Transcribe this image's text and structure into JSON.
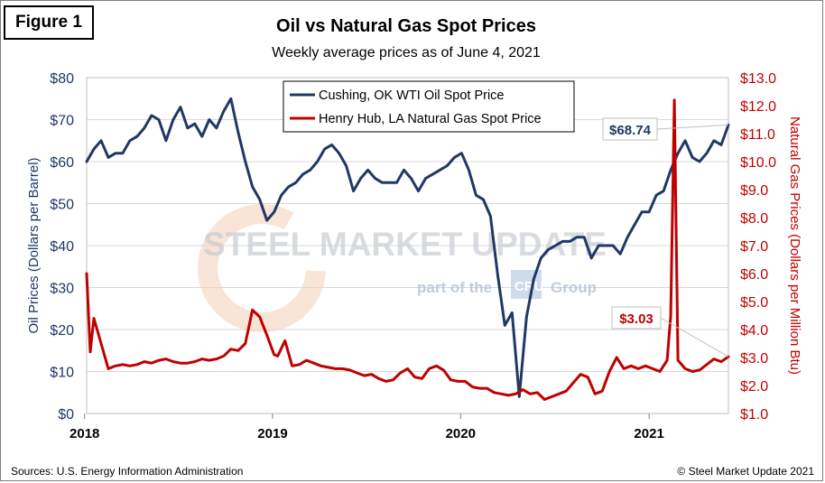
{
  "figure_label": "Figure 1",
  "sources": "Sources: U.S. Energy Information Administration",
  "copyright": "© Steel Market Update 2021",
  "watermark": {
    "main": "STEEL MARKET UPDATE",
    "sub_prefix": "part of the",
    "sub_mark": "CRU",
    "sub_suffix": "Group"
  },
  "colors": {
    "oil": "#1f3864",
    "gas": "#c00000"
  },
  "chart_data": {
    "type": "line",
    "title": "Oil vs Natural Gas Spot Prices",
    "subtitle": "Weekly average prices as of June 4, 2021",
    "x_ticks": [
      "2018",
      "2019",
      "2020",
      "2021"
    ],
    "x_range": [
      "2018-01-05",
      "2021-06-04"
    ],
    "y_left": {
      "label": "Oil Prices (Dollars per Barrel)",
      "range": [
        0,
        80
      ],
      "ticks": [
        "$0",
        "$10",
        "$20",
        "$30",
        "$40",
        "$50",
        "$60",
        "$70",
        "$80"
      ]
    },
    "y_right": {
      "label": "Natural Gas Prices (Dollars per Million Btu)",
      "range": [
        1.0,
        13.0
      ],
      "ticks": [
        "$1.0",
        "$2.0",
        "$3.0",
        "$4.0",
        "$5.0",
        "$6.0",
        "$7.0",
        "$8.0",
        "$9.0",
        "$10.0",
        "$11.0",
        "$12.0",
        "$13.0"
      ]
    },
    "grid": true,
    "legend_position": "top-center",
    "series": [
      {
        "name": "Cushing, OK WTI Oil Spot Price",
        "axis": "left",
        "end_label": "$68.74",
        "points": [
          [
            "2018-01-05",
            60
          ],
          [
            "2018-01-19",
            63
          ],
          [
            "2018-02-02",
            65
          ],
          [
            "2018-02-16",
            61
          ],
          [
            "2018-03-02",
            62
          ],
          [
            "2018-03-16",
            62
          ],
          [
            "2018-03-30",
            65
          ],
          [
            "2018-04-13",
            66
          ],
          [
            "2018-04-27",
            68
          ],
          [
            "2018-05-11",
            71
          ],
          [
            "2018-05-25",
            70
          ],
          [
            "2018-06-08",
            65
          ],
          [
            "2018-06-22",
            70
          ],
          [
            "2018-07-06",
            73
          ],
          [
            "2018-07-20",
            68
          ],
          [
            "2018-08-03",
            69
          ],
          [
            "2018-08-17",
            66
          ],
          [
            "2018-08-31",
            70
          ],
          [
            "2018-09-14",
            68
          ],
          [
            "2018-09-28",
            72
          ],
          [
            "2018-10-12",
            75
          ],
          [
            "2018-10-26",
            67
          ],
          [
            "2018-11-09",
            60
          ],
          [
            "2018-11-23",
            54
          ],
          [
            "2018-12-07",
            51
          ],
          [
            "2018-12-21",
            46
          ],
          [
            "2019-01-04",
            48
          ],
          [
            "2019-01-18",
            52
          ],
          [
            "2019-02-01",
            54
          ],
          [
            "2019-02-15",
            55
          ],
          [
            "2019-03-01",
            57
          ],
          [
            "2019-03-15",
            58
          ],
          [
            "2019-03-29",
            60
          ],
          [
            "2019-04-12",
            63
          ],
          [
            "2019-04-26",
            64
          ],
          [
            "2019-05-10",
            62
          ],
          [
            "2019-05-24",
            59
          ],
          [
            "2019-06-07",
            53
          ],
          [
            "2019-06-21",
            56
          ],
          [
            "2019-07-05",
            58
          ],
          [
            "2019-07-19",
            56
          ],
          [
            "2019-08-02",
            55
          ],
          [
            "2019-08-16",
            55
          ],
          [
            "2019-08-30",
            55
          ],
          [
            "2019-09-13",
            58
          ],
          [
            "2019-09-27",
            56
          ],
          [
            "2019-10-11",
            53
          ],
          [
            "2019-10-25",
            56
          ],
          [
            "2019-11-08",
            57
          ],
          [
            "2019-11-22",
            58
          ],
          [
            "2019-12-06",
            59
          ],
          [
            "2019-12-20",
            61
          ],
          [
            "2020-01-03",
            62
          ],
          [
            "2020-01-17",
            58
          ],
          [
            "2020-01-31",
            52
          ],
          [
            "2020-02-14",
            51
          ],
          [
            "2020-02-28",
            47
          ],
          [
            "2020-03-13",
            33
          ],
          [
            "2020-03-27",
            21
          ],
          [
            "2020-04-10",
            24
          ],
          [
            "2020-04-24",
            4
          ],
          [
            "2020-05-08",
            23
          ],
          [
            "2020-05-22",
            32
          ],
          [
            "2020-06-05",
            37
          ],
          [
            "2020-06-19",
            39
          ],
          [
            "2020-07-03",
            40
          ],
          [
            "2020-07-17",
            41
          ],
          [
            "2020-07-31",
            41
          ],
          [
            "2020-08-14",
            42
          ],
          [
            "2020-08-28",
            42
          ],
          [
            "2020-09-11",
            37
          ],
          [
            "2020-09-25",
            40
          ],
          [
            "2020-10-09",
            40
          ],
          [
            "2020-10-23",
            40
          ],
          [
            "2020-11-06",
            38
          ],
          [
            "2020-11-20",
            42
          ],
          [
            "2020-12-04",
            45
          ],
          [
            "2020-12-18",
            48
          ],
          [
            "2021-01-01",
            48
          ],
          [
            "2021-01-15",
            52
          ],
          [
            "2021-01-29",
            53
          ],
          [
            "2021-02-12",
            58
          ],
          [
            "2021-02-26",
            62
          ],
          [
            "2021-03-12",
            65
          ],
          [
            "2021-03-26",
            61
          ],
          [
            "2021-04-09",
            60
          ],
          [
            "2021-04-23",
            62
          ],
          [
            "2021-05-07",
            65
          ],
          [
            "2021-05-21",
            64
          ],
          [
            "2021-06-04",
            68.74
          ]
        ]
      },
      {
        "name": "Henry Hub, LA Natural Gas Spot Price",
        "axis": "right",
        "end_label": "$3.03",
        "points": [
          [
            "2018-01-05",
            6.0
          ],
          [
            "2018-01-12",
            3.2
          ],
          [
            "2018-01-19",
            4.4
          ],
          [
            "2018-02-02",
            3.5
          ],
          [
            "2018-02-16",
            2.6
          ],
          [
            "2018-03-02",
            2.7
          ],
          [
            "2018-03-16",
            2.75
          ],
          [
            "2018-03-30",
            2.7
          ],
          [
            "2018-04-13",
            2.75
          ],
          [
            "2018-04-27",
            2.85
          ],
          [
            "2018-05-11",
            2.8
          ],
          [
            "2018-05-25",
            2.9
          ],
          [
            "2018-06-08",
            2.95
          ],
          [
            "2018-06-22",
            2.85
          ],
          [
            "2018-07-06",
            2.8
          ],
          [
            "2018-07-20",
            2.8
          ],
          [
            "2018-08-03",
            2.85
          ],
          [
            "2018-08-17",
            2.95
          ],
          [
            "2018-08-31",
            2.9
          ],
          [
            "2018-09-14",
            2.95
          ],
          [
            "2018-09-28",
            3.05
          ],
          [
            "2018-10-12",
            3.3
          ],
          [
            "2018-10-26",
            3.25
          ],
          [
            "2018-11-09",
            3.5
          ],
          [
            "2018-11-23",
            4.7
          ],
          [
            "2018-12-07",
            4.45
          ],
          [
            "2018-12-21",
            3.8
          ],
          [
            "2019-01-04",
            3.1
          ],
          [
            "2019-01-11",
            3.05
          ],
          [
            "2019-01-25",
            3.6
          ],
          [
            "2019-02-08",
            2.7
          ],
          [
            "2019-02-22",
            2.75
          ],
          [
            "2019-03-08",
            2.9
          ],
          [
            "2019-03-22",
            2.8
          ],
          [
            "2019-04-05",
            2.7
          ],
          [
            "2019-04-19",
            2.65
          ],
          [
            "2019-05-03",
            2.6
          ],
          [
            "2019-05-17",
            2.6
          ],
          [
            "2019-05-31",
            2.55
          ],
          [
            "2019-06-14",
            2.45
          ],
          [
            "2019-06-28",
            2.35
          ],
          [
            "2019-07-12",
            2.4
          ],
          [
            "2019-07-26",
            2.25
          ],
          [
            "2019-08-09",
            2.15
          ],
          [
            "2019-08-23",
            2.2
          ],
          [
            "2019-09-06",
            2.45
          ],
          [
            "2019-09-20",
            2.6
          ],
          [
            "2019-10-04",
            2.3
          ],
          [
            "2019-10-18",
            2.25
          ],
          [
            "2019-11-01",
            2.6
          ],
          [
            "2019-11-15",
            2.7
          ],
          [
            "2019-11-29",
            2.55
          ],
          [
            "2019-12-13",
            2.2
          ],
          [
            "2019-12-27",
            2.15
          ],
          [
            "2020-01-10",
            2.15
          ],
          [
            "2020-01-24",
            1.95
          ],
          [
            "2020-02-07",
            1.9
          ],
          [
            "2020-02-21",
            1.9
          ],
          [
            "2020-03-06",
            1.75
          ],
          [
            "2020-03-20",
            1.7
          ],
          [
            "2020-04-03",
            1.65
          ],
          [
            "2020-04-17",
            1.7
          ],
          [
            "2020-05-01",
            1.85
          ],
          [
            "2020-05-15",
            1.7
          ],
          [
            "2020-05-29",
            1.75
          ],
          [
            "2020-06-12",
            1.5
          ],
          [
            "2020-06-26",
            1.6
          ],
          [
            "2020-07-10",
            1.7
          ],
          [
            "2020-07-24",
            1.8
          ],
          [
            "2020-08-07",
            2.1
          ],
          [
            "2020-08-21",
            2.4
          ],
          [
            "2020-09-04",
            2.3
          ],
          [
            "2020-09-18",
            1.7
          ],
          [
            "2020-10-02",
            1.8
          ],
          [
            "2020-10-16",
            2.5
          ],
          [
            "2020-10-30",
            3.0
          ],
          [
            "2020-11-13",
            2.6
          ],
          [
            "2020-11-27",
            2.7
          ],
          [
            "2020-12-11",
            2.6
          ],
          [
            "2020-12-25",
            2.7
          ],
          [
            "2021-01-08",
            2.6
          ],
          [
            "2021-01-22",
            2.5
          ],
          [
            "2021-02-05",
            2.9
          ],
          [
            "2021-02-12",
            4.5
          ],
          [
            "2021-02-19",
            12.2
          ],
          [
            "2021-02-26",
            2.9
          ],
          [
            "2021-03-12",
            2.6
          ],
          [
            "2021-03-26",
            2.5
          ],
          [
            "2021-04-09",
            2.55
          ],
          [
            "2021-04-23",
            2.75
          ],
          [
            "2021-05-07",
            2.95
          ],
          [
            "2021-05-21",
            2.85
          ],
          [
            "2021-06-04",
            3.03
          ]
        ]
      }
    ]
  }
}
